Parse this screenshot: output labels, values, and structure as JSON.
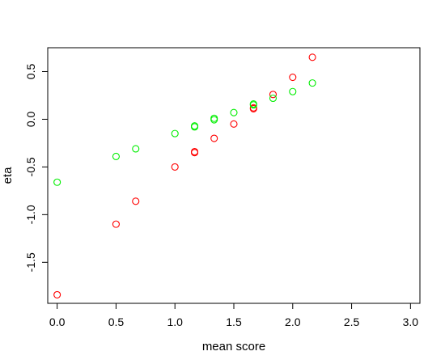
{
  "chart_data": {
    "type": "scatter",
    "xlabel": "mean score",
    "ylabel": "eta",
    "xlim": [
      -0.08,
      3.08
    ],
    "ylim": [
      -1.93,
      0.75
    ],
    "x_ticks": [
      0.0,
      0.5,
      1.0,
      1.5,
      2.0,
      2.5,
      3.0
    ],
    "x_tick_labels": [
      "0.0",
      "0.5",
      "1.0",
      "1.5",
      "2.0",
      "2.5",
      "3.0"
    ],
    "y_ticks": [
      -1.5,
      -1.0,
      -0.5,
      0.0,
      0.5
    ],
    "y_tick_labels": [
      "-1.5",
      "-1.0",
      "-0.5",
      "0.0",
      "0.5"
    ],
    "grid": false,
    "series": [
      {
        "color": "#ff0000",
        "points": [
          {
            "x": 0.0,
            "y": -1.84
          },
          {
            "x": 0.5,
            "y": -1.1
          },
          {
            "x": 0.667,
            "y": -0.86
          },
          {
            "x": 1.0,
            "y": -0.5
          },
          {
            "x": 1.167,
            "y": -0.34
          },
          {
            "x": 1.167,
            "y": -0.35
          },
          {
            "x": 1.333,
            "y": -0.2
          },
          {
            "x": 1.5,
            "y": -0.05
          },
          {
            "x": 1.667,
            "y": 0.11
          },
          {
            "x": 1.667,
            "y": 0.12
          },
          {
            "x": 1.833,
            "y": 0.26
          },
          {
            "x": 2.0,
            "y": 0.44
          },
          {
            "x": 2.167,
            "y": 0.65
          }
        ]
      },
      {
        "color": "#00ee00",
        "points": [
          {
            "x": 0.0,
            "y": -0.66
          },
          {
            "x": 0.5,
            "y": -0.39
          },
          {
            "x": 0.667,
            "y": -0.31
          },
          {
            "x": 1.0,
            "y": -0.15
          },
          {
            "x": 1.167,
            "y": -0.07
          },
          {
            "x": 1.167,
            "y": -0.08
          },
          {
            "x": 1.333,
            "y": -0.005
          },
          {
            "x": 1.333,
            "y": 0.01
          },
          {
            "x": 1.5,
            "y": 0.07
          },
          {
            "x": 1.667,
            "y": 0.15
          },
          {
            "x": 1.667,
            "y": 0.16
          },
          {
            "x": 1.833,
            "y": 0.22
          },
          {
            "x": 2.0,
            "y": 0.29
          },
          {
            "x": 2.167,
            "y": 0.38
          }
        ]
      }
    ]
  }
}
